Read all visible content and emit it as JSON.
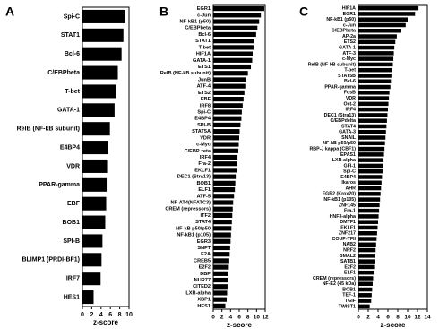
{
  "chart_data": [
    {
      "type": "barh",
      "title": "A",
      "x_label": "z-score",
      "color": "#000000",
      "categories": [
        "Spi-C",
        "STAT1",
        "Bcl-6",
        "C/EBPbeta",
        "T-bet",
        "GATA-1",
        "RelB (NF-kB subunit)",
        "E4BP4",
        "VDR",
        "PPAR-gamma",
        "EBF",
        "BOB1",
        "SPI-B",
        "BLIMP1 (PRDI-BF1)",
        "IRF7",
        "HES1"
      ],
      "values": [
        9.2,
        8.8,
        8.4,
        7.6,
        7.3,
        6.9,
        5.9,
        5.5,
        5.3,
        5.2,
        5.1,
        4.9,
        4.3,
        4.1,
        3.9,
        2.4
      ],
      "xlim": [
        0,
        10
      ],
      "xticks": [
        0,
        2,
        4,
        6,
        8,
        10
      ]
    },
    {
      "type": "barh",
      "title": "B",
      "x_label": "z-score",
      "color": "#000000",
      "categories": [
        "EGR1",
        "c-Jun",
        "NF-kB1 (p50)",
        "C/EBPbeta",
        "Bcl-6",
        "STAT1",
        "T-bet",
        "HIF1A",
        "GATA-1",
        "ETS1",
        "RelB (NF-kB subunit)",
        "JunB",
        "ATF-4",
        "ETS2",
        "EBF",
        "IRF8",
        "Spi-C",
        "E4BP4",
        "SPI-B",
        "STAT5A",
        "VDR",
        "c-Myc",
        "C/EBP zeta",
        "IRF4",
        "Fra-2",
        "EKLF1",
        "DEC1 (Stra13)",
        "BOB1",
        "ELF1",
        "ATF-5",
        "NF-AT4(NFATC3)",
        "CREM (repressors)",
        "ITF2",
        "STAT4",
        "NF-kB p50/p50",
        "NF-kB1 (p105)",
        "EGR3",
        "SNFT",
        "E2A",
        "CREB5",
        "E2F2",
        "DBP",
        "NUR77",
        "CITED2",
        "LXR-alpha",
        "XBP1",
        "HES1"
      ],
      "values": [
        11.8,
        11.0,
        10.6,
        10.2,
        9.9,
        9.5,
        9.3,
        9.1,
        9.0,
        8.7,
        8.0,
        7.6,
        7.4,
        7.2,
        7.0,
        6.8,
        6.6,
        6.5,
        6.3,
        6.1,
        6.0,
        5.9,
        5.8,
        5.6,
        5.5,
        5.4,
        5.2,
        5.1,
        5.0,
        4.8,
        4.6,
        4.5,
        4.4,
        4.3,
        4.2,
        4.1,
        4.0,
        3.9,
        3.8,
        3.7,
        3.6,
        3.5,
        3.4,
        3.3,
        3.2,
        3.1,
        2.8
      ],
      "xlim": [
        0,
        12
      ],
      "xticks": [
        0,
        2,
        4,
        6,
        8,
        10,
        12
      ]
    },
    {
      "type": "barh",
      "title": "C",
      "x_label": "z-score",
      "color": "#000000",
      "categories": [
        "HIF1A",
        "EGR1",
        "NF-kB1 (p50)",
        "c-Jun",
        "C/EBPbeta",
        "AP-2a",
        "ETS2",
        "GATA-1",
        "ATF-3",
        "c-Myc",
        "RelB (NF-kB subunit)",
        "T-bet",
        "STAT5B",
        "Bcl-6",
        "PPAR-gamma",
        "FosB",
        "VDR",
        "Oct-2",
        "IRF4",
        "DEC1 (Stra13)",
        "C/EBPdelta",
        "STAT4",
        "GATA-3",
        "SNAIL",
        "NF-kB p50/p50",
        "RBP-J kappa (CBF1)",
        "EPAS1",
        "LXR-alpha",
        "GFI-1",
        "Spi-C",
        "E4BP4",
        "Ikaros",
        "AHR",
        "EGR2 (Krox20)",
        "NF-kB1 (p105)",
        "ZNF145",
        "Fra-1",
        "HNF3-alpha",
        "DMTF1",
        "EKLF1",
        "ZNF217",
        "COUP-TFII",
        "NAB2",
        "NRF2",
        "BMAL2",
        "SATB1",
        "E2F2",
        "ELF1",
        "CREM (repressors)",
        "NF-E2 (45 kDa)",
        "BOB1",
        "TEF-1",
        "TGIF",
        "TWIST1"
      ],
      "values": [
        12.2,
        11.5,
        10.0,
        9.6,
        8.6,
        7.8,
        7.5,
        7.3,
        7.2,
        7.1,
        7.0,
        6.8,
        6.7,
        6.6,
        6.5,
        6.3,
        6.2,
        6.1,
        6.0,
        5.9,
        5.8,
        5.7,
        5.6,
        5.5,
        5.4,
        5.3,
        5.2,
        5.1,
        5.0,
        4.9,
        4.8,
        4.7,
        4.6,
        4.5,
        4.4,
        4.3,
        4.2,
        4.1,
        4.0,
        3.9,
        3.8,
        3.7,
        3.6,
        3.5,
        3.4,
        3.3,
        3.2,
        3.1,
        3.0,
        2.9,
        2.8,
        2.7,
        2.6,
        2.3
      ],
      "xlim": [
        0,
        14
      ],
      "xticks": [
        0,
        2,
        4,
        6,
        8,
        10,
        12,
        14
      ]
    }
  ]
}
